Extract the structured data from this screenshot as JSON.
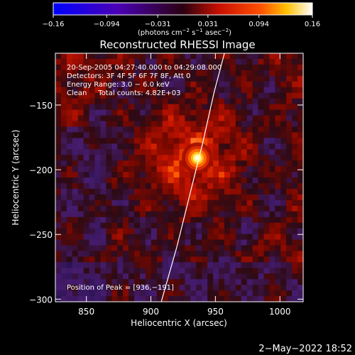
{
  "chart_data": {
    "type": "heatmap",
    "title": "Reconstructed RHESSI Image",
    "xlabel": "Heliocentric X (arcsec)",
    "ylabel": "Heliocentric Y (arcsec)",
    "xlim": [
      826,
      1018
    ],
    "ylim": [
      -302,
      -110
    ],
    "x_ticks": [
      850,
      900,
      950,
      1000
    ],
    "x_tick_labels": [
      "850",
      "900",
      "950",
      "1000"
    ],
    "y_ticks": [
      -300,
      -250,
      -200,
      -150
    ],
    "y_tick_labels": [
      "−300",
      "−250",
      "−200",
      "−150"
    ],
    "colorbar": {
      "range": [
        -0.16,
        0.16
      ],
      "ticks": [
        -0.16,
        -0.094,
        -0.031,
        0.031,
        0.094,
        0.16
      ],
      "tick_labels": [
        "−0.16",
        "−0.094",
        "−0.031",
        "0.031",
        "0.094",
        "0.16"
      ],
      "label": "(photons cm",
      "label_sup1": "−2",
      "label_mid": " s",
      "label_sup2": "−1",
      "label_mid2": " asec",
      "label_sup3": "−2",
      "label_end": ")"
    },
    "annotations": [
      "20-Sep-2005 04:27:40.000 to 04:29:08.000",
      "Detectors: 3F 4F 5F 6F 7F 8F, Att 0",
      "Energy Range: 3.0 − 6.0 keV",
      "Clean     Total counts: 4.82E+03"
    ],
    "peak_label": "Position of Peak = [936,−191]",
    "peak": {
      "x": 936,
      "y": -191,
      "value": 0.16
    },
    "limb_curve": [
      [
        908,
        -302
      ],
      [
        920,
        -260
      ],
      [
        930,
        -220
      ],
      [
        940,
        -180
      ],
      [
        949,
        -140
      ],
      [
        957,
        -110
      ]
    ],
    "grid": false
  },
  "footer": {
    "date": "2−May−2022 18:52"
  },
  "colors": {
    "background": "#000000",
    "text": "#ffffff"
  }
}
